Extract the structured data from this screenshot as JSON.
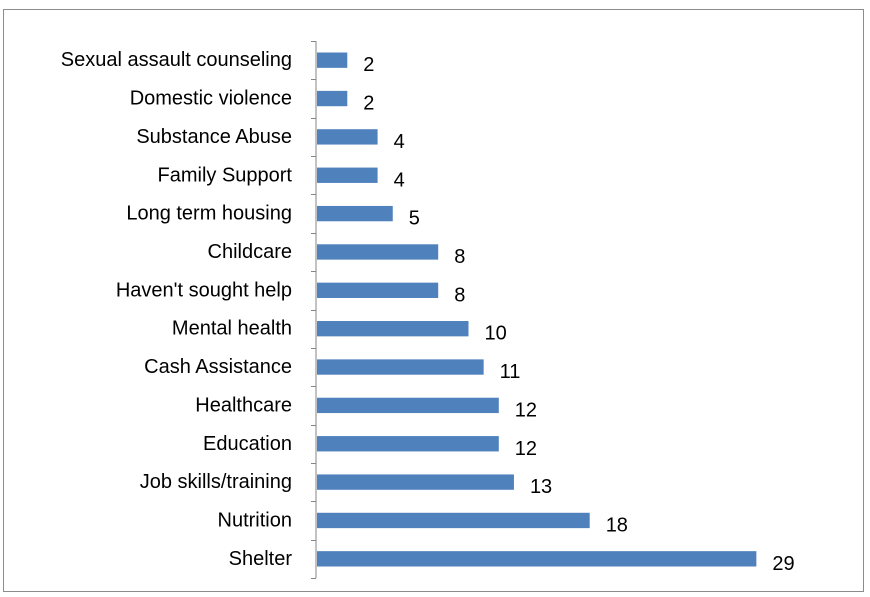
{
  "chart_data": {
    "type": "bar",
    "orientation": "horizontal",
    "title": "",
    "xlabel": "",
    "ylabel": "",
    "categories": [
      "Sexual assault counseling",
      "Domestic violence",
      "Substance Abuse",
      "Family Support",
      "Long term housing",
      "Childcare",
      "Haven't sought help",
      "Mental health",
      "Cash Assistance",
      "Healthcare",
      "Education",
      "Job skills/training",
      "Nutrition",
      "Shelter"
    ],
    "values": [
      2,
      2,
      4,
      4,
      5,
      8,
      8,
      10,
      11,
      12,
      12,
      13,
      18,
      29
    ],
    "xlim": [
      0,
      32
    ],
    "grid": false,
    "legend": "none",
    "data_labels": true,
    "bar_color": "#4f81bd",
    "axis_color": "#868686"
  }
}
